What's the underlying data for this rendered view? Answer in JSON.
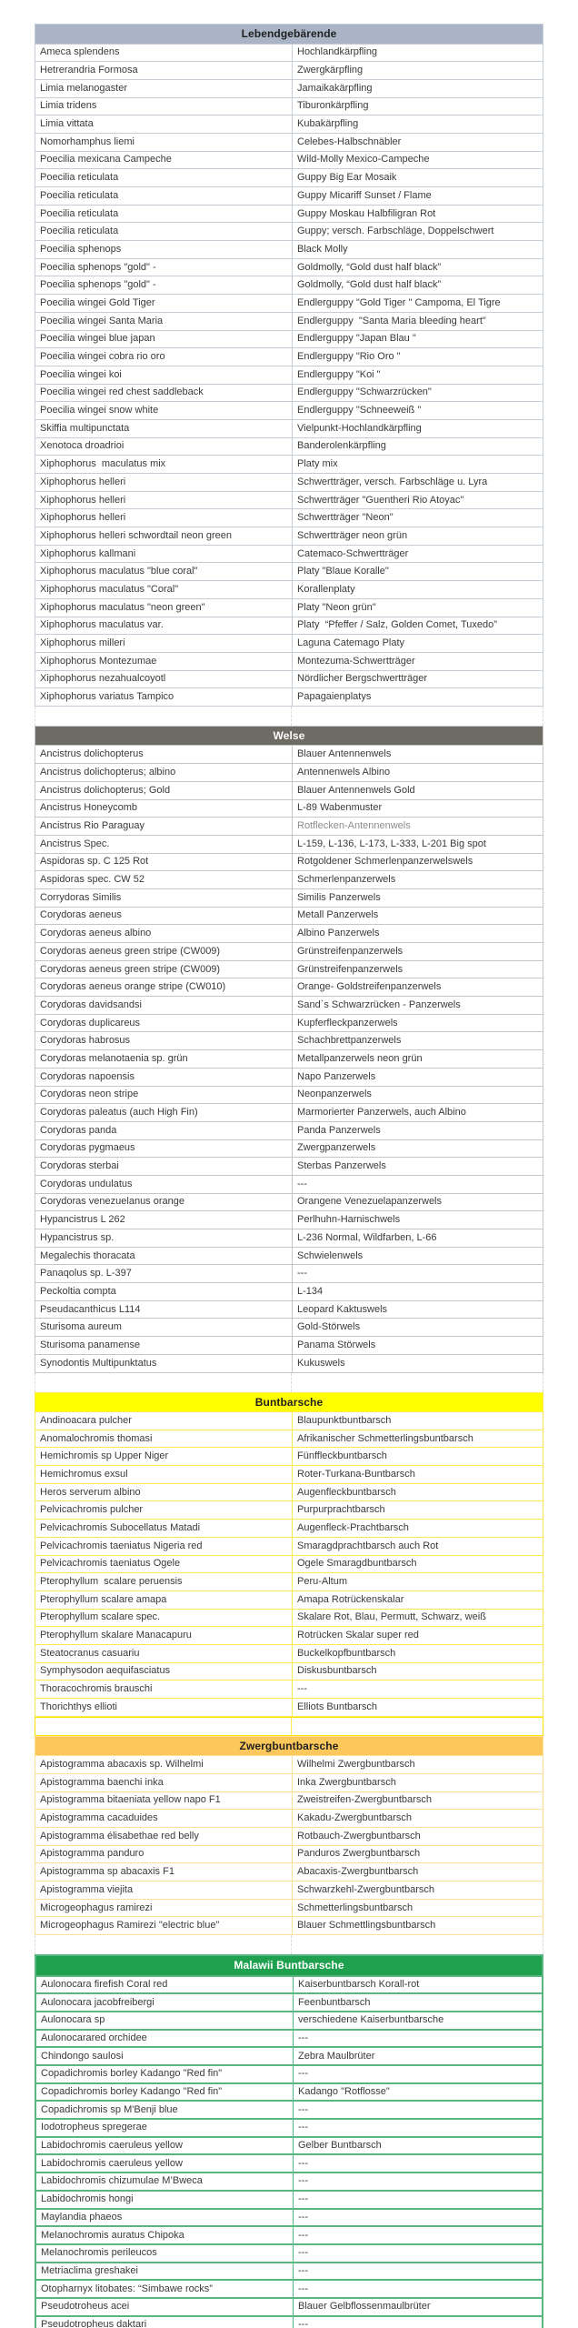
{
  "page": {
    "background": "#ffffff",
    "text_color": "#3a3a3a"
  },
  "table": {
    "columns": [
      "scientific_name",
      "german_common_name"
    ],
    "sections": [
      {
        "title": "Lebendgebärende",
        "header_bg": "#a9b5c6",
        "header_color": "#1f1f1f",
        "border_color": "#c7cdd6",
        "gap_before": null,
        "rows": [
          [
            "Ameca splendens",
            "Hochlandkärpfling"
          ],
          [
            "Hetrerandria Formosa",
            "Zwergkärpfling"
          ],
          [
            "Limia melanogaster",
            "Jamaikakärpfling"
          ],
          [
            "Limia tridens",
            "Tiburonkärpfling"
          ],
          [
            "Limia vittata",
            "Kubakärpfling"
          ],
          [
            "Nomorhamphus liemi",
            "Celebes-Halbschnäbler"
          ],
          [
            "Poecilia mexicana Campeche",
            "Wild-Molly Mexico-Campeche"
          ],
          [
            "Poecilia reticulata",
            "Guppy Big Ear Mosaik"
          ],
          [
            "Poecilia reticulata",
            "Guppy Micariff Sunset / Flame"
          ],
          [
            "Poecilia reticulata",
            "Guppy Moskau Halbfiligran Rot"
          ],
          [
            "Poecilia reticulata",
            "Guppy; versch. Farbschläge, Doppelschwert"
          ],
          [
            "Poecilia sphenops",
            "Black Molly"
          ],
          [
            "Poecilia sphenops \"gold\" -",
            "Goldmolly, “Gold dust half black”"
          ],
          [
            "Poecilia sphenops \"gold\" -",
            "Goldmolly, “Gold dust half black”"
          ],
          [
            "Poecilia wingei Gold Tiger",
            "Endlerguppy \"Gold Tiger \" Campoma, El Tigre"
          ],
          [
            "Poecilia wingei Santa Maria",
            "Endlerguppy  \"Santa Maria bleeding heart\""
          ],
          [
            "Poecilia wingei blue japan",
            "Endlerguppy \"Japan Blau \""
          ],
          [
            "Poecilia wingei cobra rio oro",
            "Endlerguppy \"Rio Oro \""
          ],
          [
            "Poecilia wingei koi",
            "Endlerguppy \"Koi \""
          ],
          [
            "Poecilia wingei red chest saddleback",
            "Endlerguppy \"Schwarzrücken\""
          ],
          [
            "Poecilia wingei snow white",
            "Endlerguppy \"Schneeweiß \""
          ],
          [
            "Skiffia multipunctata",
            "Vielpunkt-Hochlandkärpfling"
          ],
          [
            "Xenotoca droadrioi",
            "Banderolenkärpfling"
          ],
          [
            "Xiphophorus  maculatus mix",
            "Platy mix"
          ],
          [
            "Xiphophorus helleri",
            "Schwertträger, versch. Farbschläge u. Lyra"
          ],
          [
            "Xiphophorus helleri",
            "Schwertträger \"Guentheri Rio Atoyac\""
          ],
          [
            "Xiphophorus helleri",
            "Schwertträger \"Neon\""
          ],
          [
            "Xiphophorus helleri schwordtail neon green",
            "Schwertträger neon grün"
          ],
          [
            "Xiphophorus kallmani",
            "Catemaco-Schwertträger"
          ],
          [
            "Xiphophorus maculatus \"blue coral\"",
            "Platy \"Blaue Koralle\""
          ],
          [
            "Xiphophorus maculatus \"Coral\"",
            "Korallenplaty"
          ],
          [
            "Xiphophorus maculatus \"neon green\"",
            "Platy \"Neon grün\""
          ],
          [
            "Xiphophorus maculatus var.",
            "Platy  “Pfeffer / Salz, Golden Comet, Tuxedo”"
          ],
          [
            "Xiphophorus milleri",
            "Laguna Catemago Platy"
          ],
          [
            "Xiphophorus Montezumae",
            "Montezuma-Schwertträger"
          ],
          [
            "Xiphophorus nezahualcoyotl",
            "Nördlicher Bergschwertträger"
          ],
          [
            "Xiphophorus variatus Tampico",
            "Papagaienplatys"
          ]
        ]
      },
      {
        "title": "Welse",
        "header_bg": "#6e6a64",
        "header_color": "#ffffff",
        "border_color": "#c6c6c6",
        "gap_before": "plain",
        "rows": [
          [
            "Ancistrus dolichopterus",
            "Blauer Antennenwels"
          ],
          [
            "Ancistrus dolichopterus; albino",
            "Antennenwels Albino"
          ],
          [
            "Ancistrus dolichopterus; Gold",
            "Blauer Antennenwels Gold"
          ],
          [
            "Ancistrus Honeycomb",
            "L-89 Wabenmuster"
          ],
          [
            "Ancistrus Rio Paraguay",
            "Rotflecken-Antennenwels",
            "muted"
          ],
          [
            "Ancistrus Spec.",
            "L-159, L-136, L-173, L-333, L-201 Big spot"
          ],
          [
            "Aspidoras sp. C 125 Rot",
            "Rotgoldener Schmerlenpanzerwelswels"
          ],
          [
            "Aspidoras spec. CW 52",
            "Schmerlenpanzerwels"
          ],
          [
            "Corrydoras Similis",
            "Similis Panzerwels"
          ],
          [
            "Corydoras aeneus",
            "Metall Panzerwels"
          ],
          [
            "Corydoras aeneus albino",
            "Albino Panzerwels"
          ],
          [
            "Corydoras aeneus green stripe (CW009)",
            "Grünstreifenpanzerwels"
          ],
          [
            "Corydoras aeneus green stripe (CW009)",
            "Grünstreifenpanzerwels"
          ],
          [
            "Corydoras aeneus orange stripe (CW010)",
            "Orange- Goldstreifenpanzerwels"
          ],
          [
            "Corydoras davidsandsi",
            "Sand`s Schwarzrücken - Panzerwels"
          ],
          [
            "Corydoras duplicareus",
            "Kupferfleckpanzerwels"
          ],
          [
            "Corydoras habrosus",
            "Schachbrettpanzerwels"
          ],
          [
            "Corydoras melanotaenia sp. grün",
            "Metallpanzerwels neon grün"
          ],
          [
            "Corydoras napoensis",
            "Napo Panzerwels"
          ],
          [
            "Corydoras neon stripe",
            "Neonpanzerwels"
          ],
          [
            "Corydoras paleatus (auch High Fin)",
            "Marmorierter Panzerwels, auch Albino"
          ],
          [
            "Corydoras panda",
            "Panda Panzerwels"
          ],
          [
            "Corydoras pygmaeus",
            "Zwergpanzerwels"
          ],
          [
            "Corydoras sterbai",
            "Sterbas Panzerwels"
          ],
          [
            "Corydoras undulatus",
            "---"
          ],
          [
            "Corydoras venezuelanus orange",
            "Orangene Venezuelapanzerwels"
          ],
          [
            "Hypancistrus L 262",
            "Perlhuhn-Harnischwels"
          ],
          [
            "Hypancistrus sp.",
            "L-236 Normal, Wildfarben, L-66"
          ],
          [
            "Megalechis thoracata",
            "Schwielenwels"
          ],
          [
            "Panaqolus sp. L-397",
            "---"
          ],
          [
            "Peckoltia compta",
            "L-134"
          ],
          [
            "Pseudacanthicus L114",
            "Leopard Kaktuswels"
          ],
          [
            "Sturisoma aureum",
            "Gold-Störwels"
          ],
          [
            "Sturisoma panamense",
            "Panama Störwels"
          ],
          [
            "Synodontis Multipunktatus",
            "Kukuswels"
          ]
        ]
      },
      {
        "title": "Buntbarsche",
        "header_bg": "#ffff00",
        "header_color": "#1f1f1f",
        "border_color": "#ffe94d",
        "gap_before": "plain",
        "rows": [
          [
            "Andinoacara pulcher",
            "Blaupunktbuntbarsch"
          ],
          [
            "Anomalochromis thomasi",
            "Afrikanischer Schmetterlingsbuntbarsch"
          ],
          [
            "Hemichromis sp Upper Niger",
            "Fünffleckbuntbarsch"
          ],
          [
            "Hemichromus exsul",
            "Roter-Turkana-Buntbarsch"
          ],
          [
            "Heros serverum albino",
            "Augenfleckbuntbarsch"
          ],
          [
            "Pelvicachromis pulcher",
            "Purpurprachtbarsch"
          ],
          [
            "Pelvicachromis Subocellatus Matadi",
            "Augenfleck-Prachtbarsch"
          ],
          [
            "Pelvicachromis taeniatus Nigeria red",
            "Smaragdprachtbarsch auch Rot"
          ],
          [
            "Pelvicachromis taeniatus Ogele",
            "Ogele Smaragdbuntbarsch"
          ],
          [
            "Pterophyllum  scalare peruensis",
            "Peru-Altum"
          ],
          [
            "Pterophyllum scalare amapa",
            "Amapa Rotrückenskalar"
          ],
          [
            "Pterophyllum scalare spec.",
            "Skalare Rot, Blau, Permutt, Schwarz, weiß"
          ],
          [
            "Pterophyllum skalare Manacapuru",
            "Rotrücken Skalar super red"
          ],
          [
            "Steatocranus casuariu",
            "Buckelkopfbuntbarsch"
          ],
          [
            "Symphysodon aequifasciatus",
            "Diskusbuntbarsch"
          ],
          [
            "Thoracochromis brauschi",
            "---"
          ],
          [
            "Thorichthys ellioti",
            "Elliots Buntbarsch"
          ]
        ]
      },
      {
        "title": "Zwergbuntbarsche",
        "header_bg": "#fdc85b",
        "header_color": "#1f1f1f",
        "border_color": "#fcdf9a",
        "gap_before": "yellow",
        "rows": [
          [
            "Apistogramma abacaxis sp. Wilhelmi",
            "Wilhelmi Zwergbuntbarsch"
          ],
          [
            "Apistogramma baenchi inka",
            "Inka Zwergbuntbarsch"
          ],
          [
            "Apistogramma bitaeniata yellow napo F1",
            "Zweistreifen-Zwergbuntbarsch"
          ],
          [
            "Apistogramma cacaduides",
            "Kakadu-Zwergbuntbarsch"
          ],
          [
            "Apistogramma élisabethae red belly",
            "Rotbauch-Zwergbuntbarsch"
          ],
          [
            "Apistogramma panduro",
            "Panduros Zwergbuntbarsch"
          ],
          [
            "Apistogramma sp abacaxis F1",
            "Abacaxis-Zwergbuntbarsch"
          ],
          [
            "Apistogramma viejita",
            "Schwarzkehl-Zwergbuntbarsch"
          ],
          [
            "Microgeophagus ramirezi",
            "Schmetterlingsbuntbarsch"
          ],
          [
            "Microgeophagus Ramirezi \"electric blue\"",
            "Blauer Schmettlingsbuntbarsch"
          ]
        ]
      },
      {
        "title": "Malawii Buntbarsche",
        "header_bg": "#1fa14f",
        "header_color": "#ffffff",
        "border_color": "#58b781",
        "gap_before": "plain",
        "rows": [
          [
            "Aulonocara firefish Coral red",
            "Kaiserbuntbarsch Korall-rot"
          ],
          [
            "Aulonocara jacobfreibergi",
            "Feenbuntbarsch"
          ],
          [
            "Aulonocara sp",
            "verschiedene Kaiserbuntbarsche"
          ],
          [
            "Aulonocarared orchidee",
            "---"
          ],
          [
            "Chindongo saulosi",
            "Zebra Maulbrüter"
          ],
          [
            "Copadichromis borley Kadango \"Red fin\"",
            "---"
          ],
          [
            "Copadichromis borley Kadango \"Red fin\"",
            "Kadango \"Rotflosse\""
          ],
          [
            "Copadichromis sp M'Benji blue",
            "---"
          ],
          [
            "Iodotropheus spregerae",
            "---"
          ],
          [
            "Labidochromis caeruleus yellow",
            "Gelber Buntbarsch"
          ],
          [
            "Labidochromis caeruleus yellow",
            "---"
          ],
          [
            "Labidochromis chizumulae M’Bweca",
            "---"
          ],
          [
            "Labidochromis hongi",
            "---"
          ],
          [
            "Maylandia phaeos",
            "---"
          ],
          [
            "Melanochromis auratus Chipoka",
            "---"
          ],
          [
            "Melanochromis perileucos",
            "---"
          ],
          [
            "Metriaclima greshakei",
            "---"
          ],
          [
            "Otopharnyx litobates: “Simbawe rocks”",
            "---"
          ],
          [
            "Pseudotroheus acei",
            "Blauer Gelbflossenmaulbrüter"
          ],
          [
            "Pseudotropheus daktari",
            "---"
          ]
        ]
      }
    ]
  }
}
